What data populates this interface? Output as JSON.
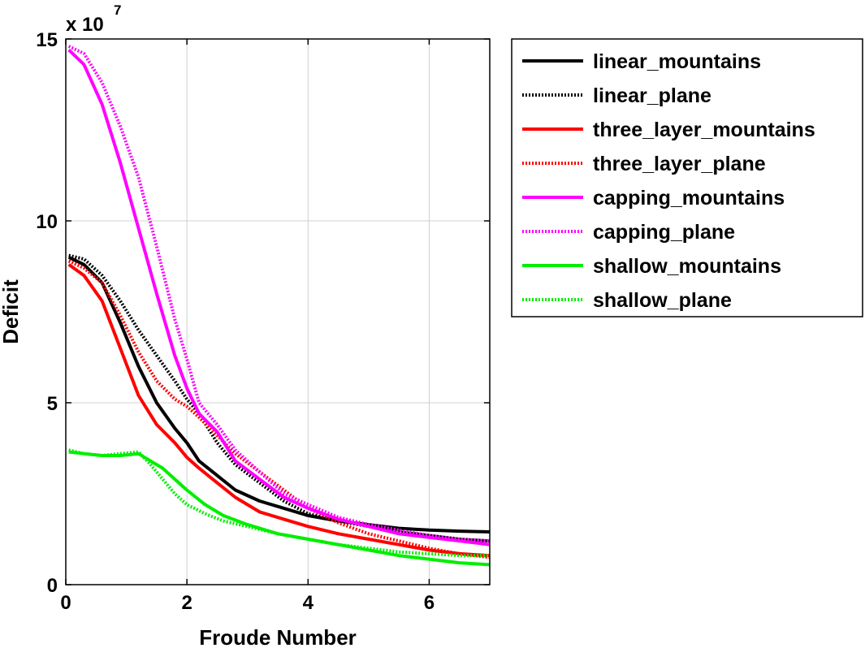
{
  "chart_data": {
    "type": "line",
    "title": "",
    "xlabel": "Froude Number",
    "ylabel": "Deficit",
    "y_multiplier_label": "x 10",
    "y_multiplier_exponent": "7",
    "xlim": [
      0,
      7
    ],
    "ylim": [
      0,
      15
    ],
    "x_ticks": [
      0,
      2,
      4,
      6
    ],
    "y_ticks": [
      0,
      5,
      10,
      15
    ],
    "grid": true,
    "legend_position": "outside-top-right",
    "series": [
      {
        "name": "linear_mountains",
        "color": "#000000",
        "dash": "solid",
        "x": [
          0.05,
          0.3,
          0.6,
          0.9,
          1.2,
          1.5,
          1.8,
          2.0,
          2.2,
          2.5,
          2.8,
          3.2,
          3.6,
          4.0,
          4.5,
          5.0,
          5.5,
          6.0,
          6.5,
          7.0
        ],
        "y": [
          9.0,
          8.8,
          8.3,
          7.2,
          6.0,
          5.0,
          4.3,
          3.9,
          3.4,
          3.0,
          2.6,
          2.3,
          2.1,
          1.9,
          1.75,
          1.65,
          1.55,
          1.5,
          1.47,
          1.45
        ]
      },
      {
        "name": "linear_plane",
        "color": "#000000",
        "dash": "dotted",
        "x": [
          0.05,
          0.3,
          0.6,
          0.9,
          1.2,
          1.5,
          1.8,
          2.0,
          2.2,
          2.5,
          2.8,
          3.2,
          3.6,
          4.0,
          4.5,
          5.0,
          5.5,
          6.0,
          6.5,
          7.0
        ],
        "y": [
          9.05,
          8.95,
          8.5,
          7.8,
          7.0,
          6.3,
          5.6,
          5.1,
          4.7,
          3.9,
          3.3,
          2.8,
          2.3,
          1.95,
          1.75,
          1.6,
          1.45,
          1.35,
          1.25,
          1.2
        ]
      },
      {
        "name": "three_layer_mountains",
        "color": "#ff0000",
        "dash": "solid",
        "x": [
          0.05,
          0.3,
          0.6,
          0.9,
          1.2,
          1.5,
          1.8,
          2.0,
          2.2,
          2.5,
          2.8,
          3.2,
          3.6,
          4.0,
          4.5,
          5.0,
          5.5,
          6.0,
          6.5,
          7.0
        ],
        "y": [
          8.8,
          8.5,
          7.8,
          6.5,
          5.2,
          4.4,
          3.9,
          3.5,
          3.2,
          2.8,
          2.4,
          2.0,
          1.8,
          1.6,
          1.4,
          1.25,
          1.1,
          0.95,
          0.85,
          0.8
        ]
      },
      {
        "name": "three_layer_plane",
        "color": "#ff0000",
        "dash": "dotted",
        "x": [
          0.05,
          0.3,
          0.6,
          0.9,
          1.2,
          1.5,
          1.8,
          2.0,
          2.2,
          2.5,
          2.8,
          3.2,
          3.6,
          4.0,
          4.5,
          5.0,
          5.5,
          6.0,
          6.5,
          7.0
        ],
        "y": [
          8.9,
          8.7,
          8.3,
          7.4,
          6.4,
          5.6,
          5.1,
          4.9,
          4.6,
          4.1,
          3.6,
          3.1,
          2.6,
          2.1,
          1.7,
          1.4,
          1.2,
          1.0,
          0.85,
          0.75
        ]
      },
      {
        "name": "capping_mountains",
        "color": "#ff00ff",
        "dash": "solid",
        "x": [
          0.05,
          0.3,
          0.6,
          0.9,
          1.2,
          1.5,
          1.8,
          2.0,
          2.2,
          2.5,
          2.8,
          3.2,
          3.6,
          4.0,
          4.5,
          5.0,
          5.5,
          6.0,
          6.5,
          7.0
        ],
        "y": [
          14.7,
          14.3,
          13.2,
          11.6,
          9.8,
          8.0,
          6.3,
          5.4,
          4.7,
          4.2,
          3.4,
          2.9,
          2.4,
          2.1,
          1.8,
          1.6,
          1.4,
          1.3,
          1.2,
          1.1
        ]
      },
      {
        "name": "capping_plane",
        "color": "#ff00ff",
        "dash": "dotted",
        "x": [
          0.05,
          0.3,
          0.6,
          0.9,
          1.2,
          1.5,
          1.8,
          2.0,
          2.2,
          2.5,
          2.8,
          3.2,
          3.6,
          4.0,
          4.5,
          5.0,
          5.5,
          6.0,
          6.5,
          7.0
        ],
        "y": [
          14.8,
          14.6,
          13.8,
          12.6,
          11.2,
          9.3,
          7.3,
          6.2,
          5.0,
          4.4,
          3.7,
          3.1,
          2.5,
          2.2,
          1.85,
          1.65,
          1.5,
          1.35,
          1.25,
          1.2
        ]
      },
      {
        "name": "shallow_mountains",
        "color": "#00ee00",
        "dash": "solid",
        "x": [
          0.05,
          0.3,
          0.6,
          0.9,
          1.2,
          1.4,
          1.6,
          1.8,
          2.0,
          2.3,
          2.6,
          3.0,
          3.5,
          4.0,
          4.5,
          5.0,
          5.5,
          6.0,
          6.5,
          7.0
        ],
        "y": [
          3.65,
          3.6,
          3.55,
          3.55,
          3.6,
          3.4,
          3.2,
          2.9,
          2.6,
          2.2,
          1.9,
          1.65,
          1.4,
          1.25,
          1.1,
          0.95,
          0.8,
          0.7,
          0.6,
          0.55
        ]
      },
      {
        "name": "shallow_plane",
        "color": "#00ee00",
        "dash": "dotted",
        "x": [
          0.05,
          0.3,
          0.6,
          0.9,
          1.2,
          1.4,
          1.6,
          1.8,
          2.0,
          2.3,
          2.6,
          3.0,
          3.5,
          4.0,
          4.5,
          5.0,
          5.5,
          6.0,
          6.5,
          7.0
        ],
        "y": [
          3.7,
          3.6,
          3.55,
          3.6,
          3.65,
          3.3,
          2.9,
          2.5,
          2.2,
          1.95,
          1.75,
          1.6,
          1.4,
          1.25,
          1.1,
          1.0,
          0.9,
          0.85,
          0.8,
          0.8
        ]
      }
    ]
  }
}
